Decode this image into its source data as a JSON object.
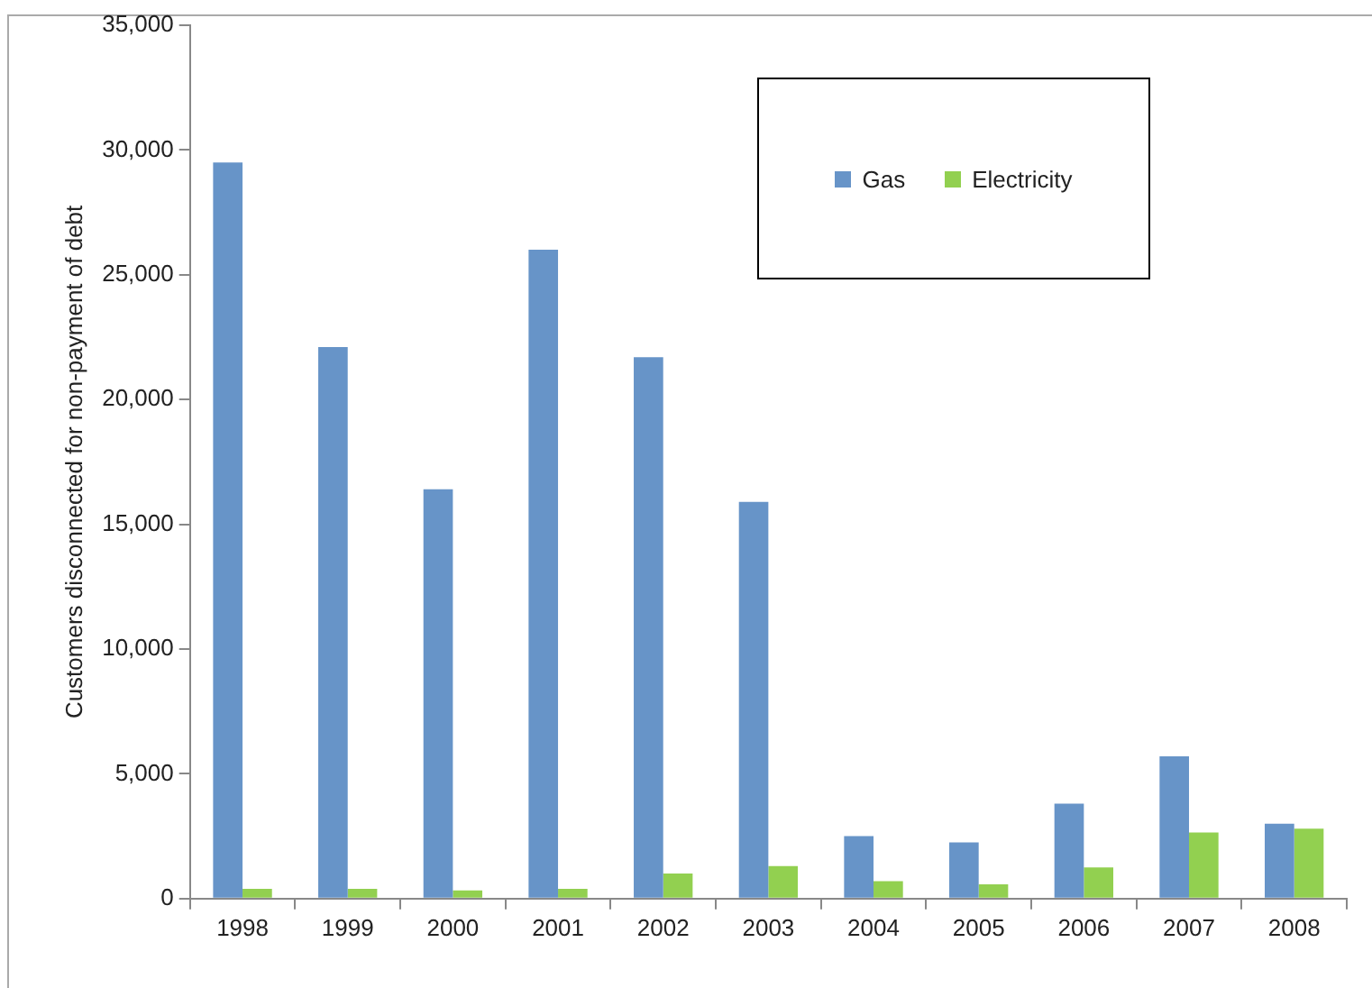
{
  "chart_data": {
    "type": "bar",
    "ylabel": "Customers disconnected for non-payment of debt",
    "categories": [
      "1998",
      "1999",
      "2000",
      "2001",
      "2002",
      "2003",
      "2004",
      "2005",
      "2006",
      "2007",
      "2008"
    ],
    "series": [
      {
        "name": "Gas",
        "color": "#6794c8",
        "values": [
          29500,
          22100,
          16400,
          26000,
          21700,
          15900,
          2500,
          2250,
          3800,
          5700,
          3000
        ]
      },
      {
        "name": "Electricity",
        "color": "#92d050",
        "values": [
          390,
          390,
          330,
          390,
          1000,
          1300,
          700,
          570,
          1250,
          2650,
          2800
        ]
      }
    ],
    "ylim": [
      0,
      35000
    ],
    "yticks": [
      0,
      {
        "value": 5000,
        "label": "5,000"
      },
      {
        "value": 10000,
        "label": "10,000"
      },
      {
        "value": 15000,
        "label": "15,000"
      },
      {
        "value": 20000,
        "label": "20,000"
      },
      {
        "value": 25000,
        "label": "25,000"
      },
      {
        "value": 30000,
        "label": "30,000"
      },
      {
        "value": 35000,
        "label": "35,000"
      }
    ],
    "grid": false,
    "legend": "top right"
  }
}
